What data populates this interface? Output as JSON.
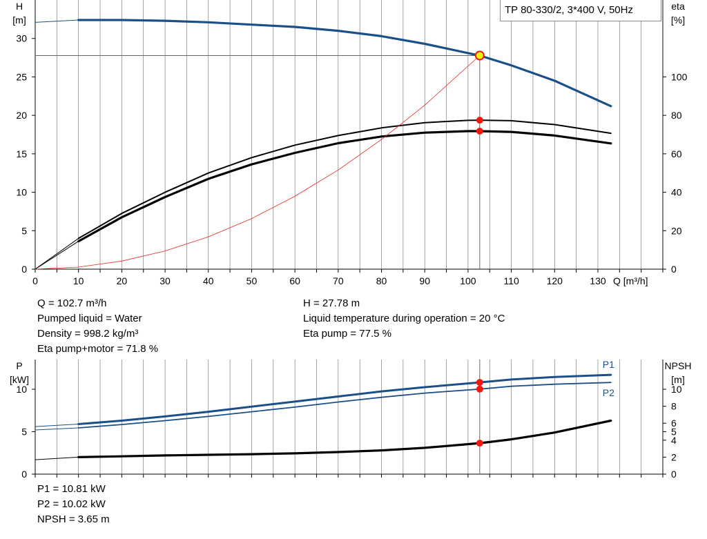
{
  "header": {
    "title": "TP 80-330/2, 3*400 V, 50Hz"
  },
  "colors": {
    "head_curve": "#1a4f87",
    "eta_curve": "#000000",
    "system_curve": "#e8251f",
    "duty_marker": "#f0180f",
    "duty_point_fill": "#f7f20a",
    "grid": "#5a5a5a"
  },
  "operating_info": {
    "q": "Q = 102.7 m³/h",
    "liquid": "Pumped liquid = Water",
    "density": "Density = 998.2 kg/m³",
    "eta_total": "Eta pump+motor = 71.8 %",
    "h": "H = 27.78 m",
    "temperature": "Liquid temperature during operation = 20 °C",
    "eta_pump": "Eta pump = 77.5 %"
  },
  "power_info": {
    "p1": "P1 = 10.81 kW",
    "p2": "P2 = 10.02 kW",
    "npsh": "NPSH = 3.65 m"
  },
  "chart_data": [
    {
      "type": "line",
      "xlabel": "Q [m³/h]",
      "xlim": [
        0,
        145
      ],
      "xticks": [
        0,
        10,
        20,
        30,
        40,
        50,
        60,
        70,
        80,
        90,
        100,
        110,
        120,
        130
      ],
      "ylabel_left": {
        "top": "H",
        "unit": "[m]"
      },
      "ylim_left": [
        0,
        35
      ],
      "yticks_left": [
        0,
        5,
        10,
        15,
        20,
        25,
        30
      ],
      "ylabel_right": {
        "top": "eta",
        "unit": "[%]"
      },
      "ylim_right": [
        0,
        140
      ],
      "yticks_right": [
        0,
        20,
        40,
        60,
        80,
        100
      ],
      "grid": true,
      "duty_point": {
        "q": 102.7,
        "h": 27.78,
        "eta_pump": 77.5,
        "eta_total": 71.8
      },
      "series": [
        {
          "key": "head",
          "axis": "left",
          "style": "thick-blue",
          "x": [
            0,
            10,
            20,
            30,
            40,
            50,
            60,
            70,
            80,
            90,
            100,
            102.7,
            110,
            120,
            133
          ],
          "y": [
            32.1,
            32.4,
            32.4,
            32.3,
            32.1,
            31.8,
            31.5,
            31.0,
            30.3,
            29.3,
            28.1,
            27.78,
            26.5,
            24.5,
            21.2
          ]
        },
        {
          "key": "eta_pump",
          "axis": "right",
          "style": "black-thin",
          "x": [
            0,
            10,
            20,
            30,
            40,
            50,
            60,
            70,
            80,
            90,
            100,
            102.7,
            110,
            120,
            133
          ],
          "y": [
            0,
            16,
            29,
            40,
            50,
            58,
            64.5,
            69.5,
            73.5,
            76.2,
            77.4,
            77.5,
            77.2,
            75.2,
            70.7
          ]
        },
        {
          "key": "eta_total",
          "axis": "right",
          "style": "black-thick",
          "x": [
            0,
            10,
            20,
            30,
            40,
            50,
            60,
            70,
            80,
            90,
            100,
            102.7,
            110,
            120,
            133
          ],
          "y": [
            0,
            14.5,
            27,
            37.5,
            47,
            54.5,
            60.5,
            65.5,
            69,
            71,
            71.8,
            71.8,
            71.4,
            69.5,
            65.4
          ]
        },
        {
          "key": "system_curve",
          "axis": "left",
          "style": "red-thin",
          "x": [
            0,
            10,
            20,
            30,
            40,
            50,
            60,
            70,
            80,
            90,
            102.7
          ],
          "y": [
            0,
            0.27,
            1.05,
            2.37,
            4.21,
            6.58,
            9.48,
            12.9,
            16.85,
            21.32,
            27.78
          ]
        }
      ]
    },
    {
      "type": "line",
      "xlim": [
        0,
        145
      ],
      "xticks": [
        0,
        10,
        20,
        30,
        40,
        50,
        60,
        70,
        80,
        90,
        100,
        110,
        120,
        130
      ],
      "ylabel_left": {
        "top": "P",
        "unit": "[kW]"
      },
      "ylim_left": [
        0,
        13.5
      ],
      "yticks_left": [
        0,
        5,
        10
      ],
      "ylabel_right": {
        "top": "NPSH",
        "unit": "[m]"
      },
      "ylim_right": [
        0,
        13.5
      ],
      "yticks_right": [
        0,
        2,
        4,
        5,
        6,
        8,
        10
      ],
      "grid": true,
      "duty_point": {
        "q": 102.7,
        "p1": 10.81,
        "p2": 10.02,
        "npsh": 3.65
      },
      "series": [
        {
          "key": "p1",
          "name": "P1",
          "axis": "left",
          "style": "blue-medium",
          "x": [
            0,
            10,
            20,
            30,
            40,
            50,
            60,
            70,
            80,
            90,
            102.7,
            110,
            120,
            133
          ],
          "y": [
            5.6,
            5.9,
            6.3,
            6.8,
            7.35,
            7.95,
            8.55,
            9.15,
            9.75,
            10.25,
            10.81,
            11.15,
            11.45,
            11.7
          ]
        },
        {
          "key": "p2",
          "name": "P2",
          "axis": "left",
          "style": "blue-thin",
          "x": [
            0,
            10,
            20,
            30,
            40,
            50,
            60,
            70,
            80,
            90,
            102.7,
            110,
            120,
            133
          ],
          "y": [
            5.2,
            5.45,
            5.85,
            6.3,
            6.8,
            7.35,
            7.9,
            8.5,
            9.05,
            9.55,
            10.02,
            10.35,
            10.6,
            10.8
          ]
        },
        {
          "key": "npsh",
          "axis": "right",
          "style": "black-thick",
          "x": [
            0,
            10,
            20,
            30,
            40,
            50,
            60,
            70,
            80,
            90,
            102.7,
            110,
            120,
            133
          ],
          "y": [
            1.7,
            2.0,
            2.1,
            2.2,
            2.28,
            2.35,
            2.45,
            2.6,
            2.8,
            3.1,
            3.65,
            4.1,
            4.9,
            6.3
          ]
        }
      ]
    }
  ]
}
